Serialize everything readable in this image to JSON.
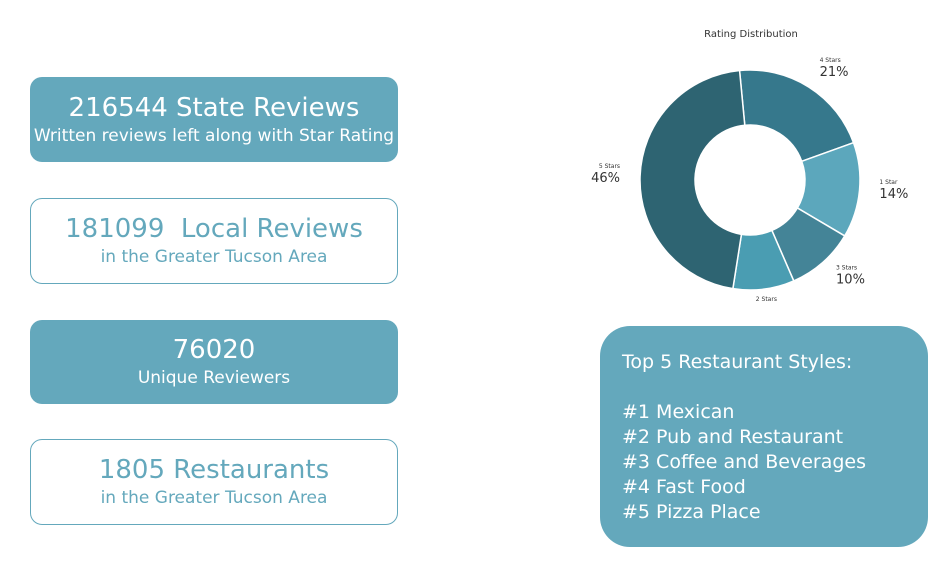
{
  "stats": [
    {
      "main": "216544 State Reviews",
      "sub": "Written reviews left along with Star Rating"
    },
    {
      "main": "181099  Local Reviews",
      "sub": "in the Greater Tucson Area"
    },
    {
      "main": "76020",
      "sub": "Unique Reviewers"
    },
    {
      "main": "1805 Restaurants",
      "sub": "in the Greater Tucson Area"
    }
  ],
  "top_styles": {
    "title": "Top 5 Restaurant Styles:",
    "items": [
      "#1 Mexican",
      "#2 Pub and Restaurant",
      "#3 Coffee and Beverages",
      "#4 Fast Food",
      "#5 Pizza Place"
    ]
  },
  "colors": {
    "accent": "#64a8bc",
    "slices": [
      "#36788c",
      "#5ca7bc",
      "#448497",
      "#4a9db2",
      "#2e6472"
    ]
  },
  "chart_data": {
    "type": "pie",
    "title": "Rating Distribution",
    "categories": [
      "4 Stars",
      "1 Star",
      "3 Stars",
      "2 Stars",
      "5 Stars"
    ],
    "values": [
      21,
      14,
      10,
      9,
      46
    ],
    "labels": [
      "21%",
      "14%",
      "10%",
      "9%",
      "46%"
    ],
    "donut": true
  }
}
